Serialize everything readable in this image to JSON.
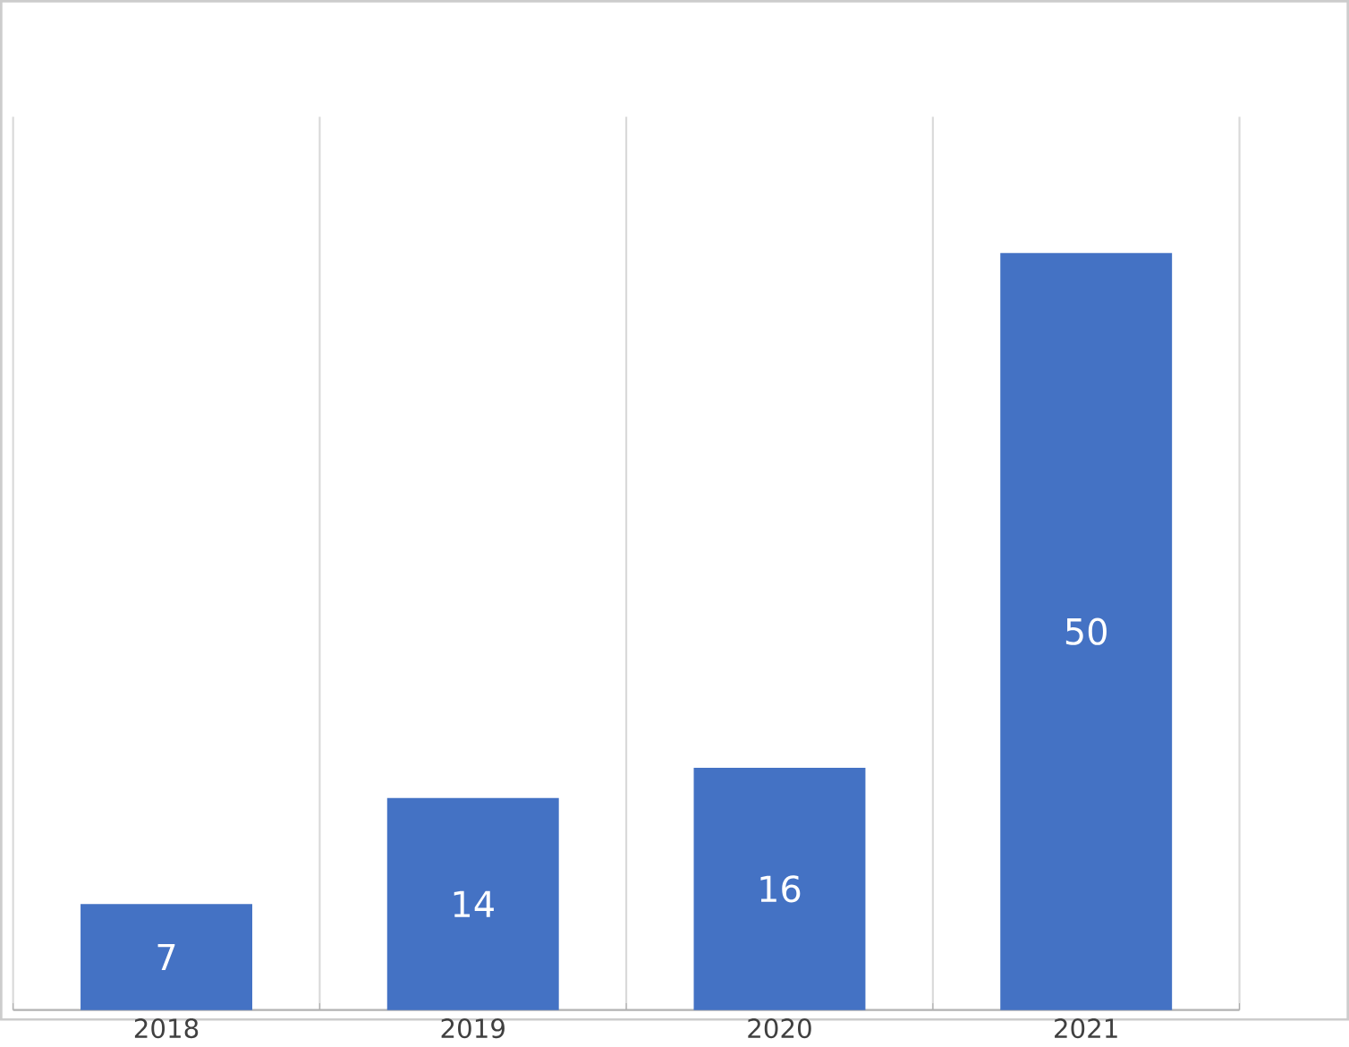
{
  "chart_data": {
    "type": "bar",
    "categories": [
      "2018",
      "2019",
      "2020",
      "2021"
    ],
    "values": [
      7,
      14,
      16,
      50
    ],
    "color": "#4472c4",
    "data_labels": true,
    "grid": "x"
  }
}
